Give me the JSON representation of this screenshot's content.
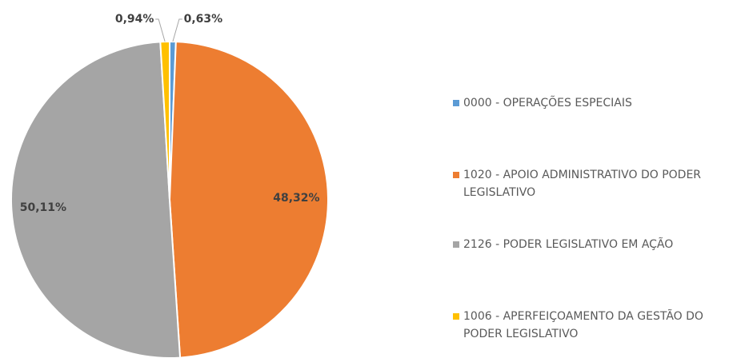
{
  "chart_data": {
    "type": "pie",
    "categories": [
      "0000 - OPERAÇÕES ESPECIAIS",
      "1020 - APOIO ADMINISTRATIVO DO PODER LEGISLATIVO",
      "2126 - PODER LEGISLATIVO EM AÇÃO",
      "1006 - APERFEIÇOAMENTO DA GESTÃO DO PODER LEGISLATIVO"
    ],
    "values": [
      0.63,
      48.32,
      50.11,
      0.94
    ],
    "value_labels": [
      "0,63%",
      "48,32%",
      "50,11%",
      "0,94%"
    ],
    "colors": [
      "#5b9bd5",
      "#ed7d31",
      "#a5a5a5",
      "#ffc000"
    ],
    "legend": "right"
  }
}
